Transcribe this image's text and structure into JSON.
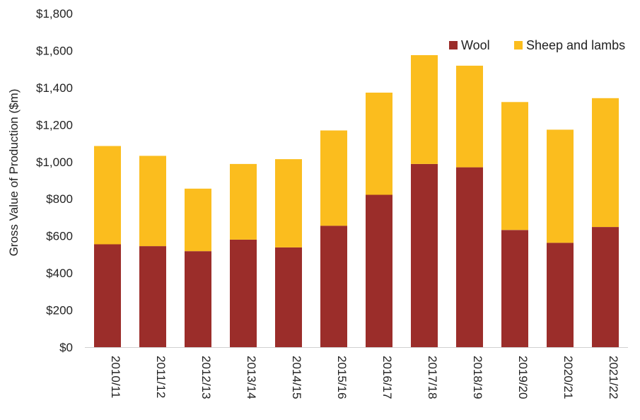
{
  "chart_data": {
    "type": "bar",
    "stacked": true,
    "ylabel": "Gross Value of Production ($m)",
    "xlabel": "",
    "ylim": [
      0,
      1800
    ],
    "ytick_values": [
      0,
      200,
      400,
      600,
      800,
      1000,
      1200,
      1400,
      1600,
      1800
    ],
    "ytick_labels": [
      "$0",
      "$200",
      "$400",
      "$600",
      "$800",
      "$1,000",
      "$1,200",
      "$1,400",
      "$1,600",
      "$1,800"
    ],
    "categories": [
      "2010/11",
      "2011/12",
      "2012/13",
      "2013/14",
      "2014/15",
      "2015/16",
      "2016/17",
      "2017/18",
      "2018/19",
      "2019/20",
      "2020/21",
      "2021/22"
    ],
    "series": [
      {
        "name": "Wool",
        "color": "#9b2d2a",
        "values": [
          555,
          545,
          518,
          580,
          538,
          655,
          822,
          988,
          970,
          632,
          563,
          648
        ]
      },
      {
        "name": "Sheep and lambs",
        "color": "#fbbd1e",
        "values": [
          530,
          487,
          337,
          408,
          476,
          514,
          551,
          587,
          548,
          690,
          610,
          695
        ]
      }
    ],
    "grid": false,
    "legend_position": "top-right"
  }
}
